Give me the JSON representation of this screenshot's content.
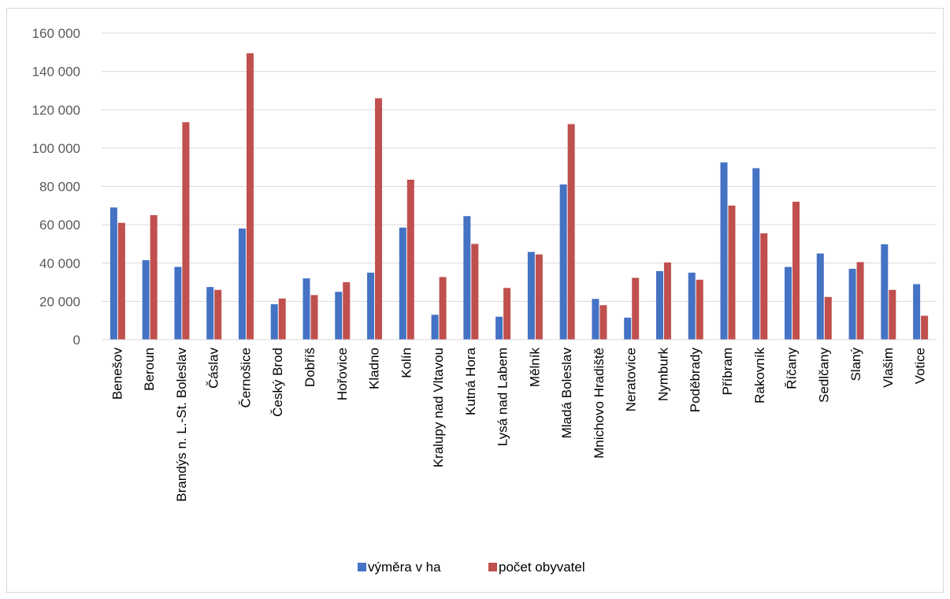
{
  "chart_data": {
    "type": "bar",
    "title": "",
    "xlabel": "",
    "ylabel": "",
    "ylim": [
      0,
      160000
    ],
    "yticks": [
      0,
      20000,
      40000,
      60000,
      80000,
      100000,
      120000,
      140000,
      160000
    ],
    "ytick_labels": [
      "0",
      "20 000",
      "40 000",
      "60 000",
      "80 000",
      "100 000",
      "120 000",
      "140 000",
      "160 000"
    ],
    "grid": true,
    "legend_position": "bottom",
    "categories": [
      "Benešov",
      "Beroun",
      "Brandýs n. L.-St. Boleslav",
      "Čáslav",
      "Černošice",
      "Český Brod",
      "Dobříš",
      "Hořovice",
      "Kladno",
      "Kolín",
      "Kralupy nad Vltavou",
      "Kutná Hora",
      "Lysá nad Labem",
      "Mělník",
      "Mladá Boleslav",
      "Mnichovo Hradiště",
      "Neratovice",
      "Nymburk",
      "Poděbrady",
      "Příbram",
      "Rakovník",
      "Říčany",
      "Sedlčany",
      "Slaný",
      "Vlašim",
      "Votice"
    ],
    "series": [
      {
        "name": "výměra v ha",
        "color": "#4472c4",
        "values": [
          69000,
          41500,
          38000,
          27500,
          58000,
          18500,
          32000,
          25000,
          35000,
          58500,
          13000,
          64500,
          12000,
          45800,
          81000,
          21300,
          11500,
          35800,
          35000,
          92500,
          89500,
          38000,
          45000,
          37000,
          49800,
          29000
        ]
      },
      {
        "name": "počet obyvatel",
        "color": "#c0504d",
        "values": [
          61000,
          65000,
          113500,
          26000,
          149500,
          21500,
          23300,
          30000,
          126000,
          83500,
          32700,
          50000,
          27000,
          44500,
          112500,
          18000,
          32300,
          40300,
          31300,
          70000,
          55500,
          72000,
          22300,
          40500,
          26000,
          12500
        ]
      }
    ]
  }
}
